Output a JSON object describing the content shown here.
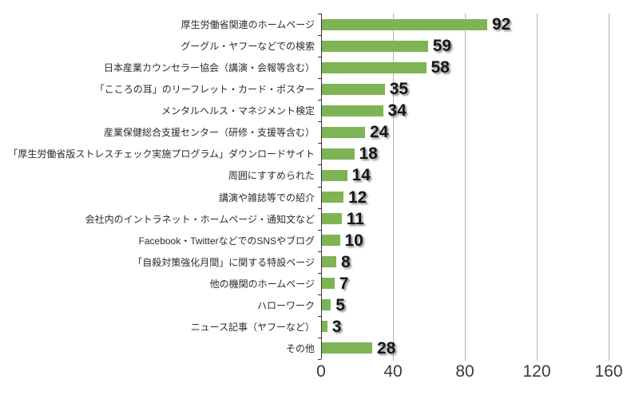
{
  "chart_data": {
    "type": "bar",
    "orientation": "horizontal",
    "title": "",
    "xlabel": "",
    "ylabel": "",
    "categories": [
      "厚生労働省関連のホームページ",
      "グーグル・ヤフーなどでの検索",
      "日本産業カウンセラー協会（講演・会報等含む）",
      "「こころの耳」のリーフレット・カード・ポスター",
      "メンタルヘルス・マネジメント検定",
      "産業保健総合支援センター（研修・支援等含む）",
      "「厚生労働省版ストレスチェック実施プログラム」ダウンロードサイト",
      "周囲にすすめられた",
      "講演や雑誌等での紹介",
      "会社内のイントラネット・ホームページ・通知文など",
      "Facebook・TwitterなどでのSNSやブログ",
      "「自殺対策強化月間」に関する特設ページ",
      "他の機関のホームページ",
      "ハローワーク",
      "ニュース記事（ヤフーなど）",
      "その他"
    ],
    "values": [
      92,
      59,
      58,
      35,
      34,
      24,
      18,
      14,
      12,
      11,
      10,
      8,
      7,
      5,
      3,
      28
    ],
    "xlim": [
      0,
      160
    ],
    "x_ticks": [
      0,
      40,
      80,
      120,
      160
    ],
    "x_tick_labels": [
      "0",
      "40",
      "80",
      "120",
      "160"
    ],
    "grid": true,
    "legend": "none",
    "value_labels_shown": true,
    "colors": {
      "bar": "#7eb456",
      "gridline": "#b3b3b3",
      "axis": "#333333",
      "value_label": "#161616",
      "category_label": "#2b2b2b",
      "tick_label": "#3a3a3a",
      "background": "#ffffff"
    }
  }
}
